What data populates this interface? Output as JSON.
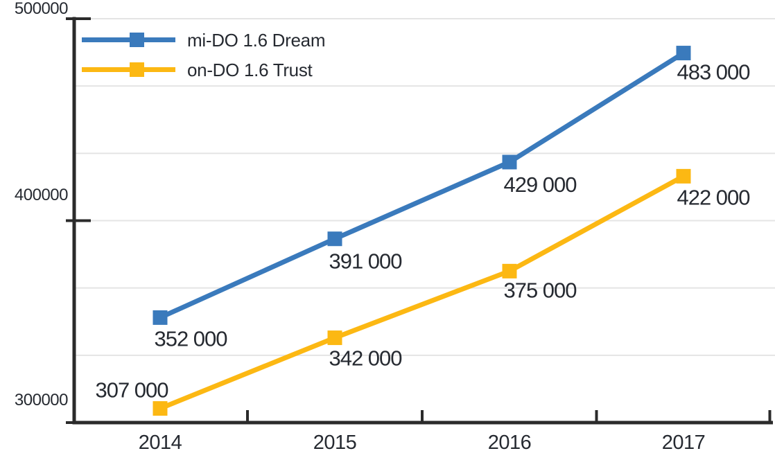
{
  "chart_data": {
    "type": "line",
    "title": "",
    "xlabel": "",
    "ylabel": "",
    "categories": [
      "2014",
      "2015",
      "2016",
      "2017"
    ],
    "series": [
      {
        "name": "mi-DO 1.6 Dream",
        "color": "#3a7abc",
        "values": [
          352000,
          391000,
          429000,
          483000
        ],
        "point_labels": [
          "352 000",
          "391 000",
          "429 000",
          "483 000"
        ]
      },
      {
        "name": "on-DO 1.6 Trust",
        "color": "#fcb813",
        "values": [
          307000,
          342000,
          375000,
          422000
        ],
        "point_labels": [
          "307 000",
          "342 000",
          "375 000",
          "422 000"
        ]
      }
    ],
    "ylim": [
      300000,
      500000
    ],
    "ytick_labels": [
      "500000",
      "400000",
      "300000"
    ],
    "grid": true,
    "grid_interval": 33333.333,
    "legend_position": "top-left",
    "marker": "square"
  },
  "colors": {
    "background": "#ffffff",
    "axis": "#2b2b2b",
    "grid": "#e4e4e4",
    "text": "#262a31"
  }
}
